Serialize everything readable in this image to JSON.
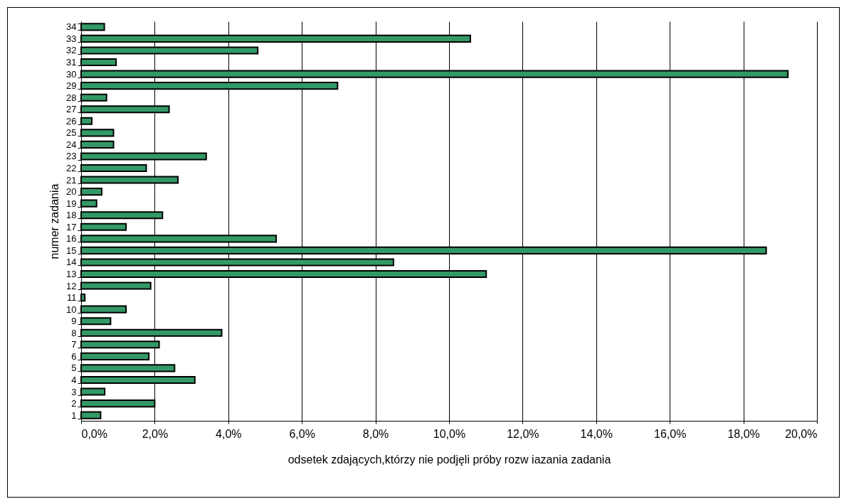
{
  "chart_data": {
    "type": "bar",
    "orientation": "horizontal",
    "xlabel": "odsetek zdających,którzy nie podjęli próby rozw iazania zadania",
    "ylabel": "numer zadania",
    "categories": [
      "34",
      "33",
      "32",
      "31",
      "30",
      "29",
      "28",
      "27",
      "26",
      "25",
      "24",
      "23",
      "22",
      "21",
      "20",
      "19",
      "18",
      "17",
      "16",
      "15",
      "14",
      "13",
      "12",
      "11",
      "10",
      "9",
      "8",
      "7",
      "6",
      "5",
      "4",
      "3",
      "2",
      "1"
    ],
    "values": [
      0.63,
      10.58,
      4.8,
      0.95,
      19.21,
      6.97,
      0.69,
      2.39,
      0.29,
      0.88,
      0.88,
      3.4,
      1.77,
      2.63,
      0.56,
      0.42,
      2.21,
      1.22,
      5.3,
      18.62,
      8.49,
      11.01,
      1.89,
      0.1,
      1.22,
      0.8,
      3.82,
      2.12,
      1.84,
      2.54,
      3.09,
      0.64,
      2.0,
      0.53
    ],
    "color": "#339966",
    "xlim": [
      0,
      20
    ],
    "xticks": [
      {
        "value": 0,
        "label": "0,0%"
      },
      {
        "value": 2,
        "label": "2,0%"
      },
      {
        "value": 4,
        "label": "4,0%"
      },
      {
        "value": 6,
        "label": "6,0%"
      },
      {
        "value": 8,
        "label": "8,0%"
      },
      {
        "value": 10,
        "label": "10,0%"
      },
      {
        "value": 12,
        "label": "12,0%"
      },
      {
        "value": 14,
        "label": "14,0%"
      },
      {
        "value": 16,
        "label": "16,0%"
      },
      {
        "value": 18,
        "label": "18,0%"
      },
      {
        "value": 20,
        "label": "20,0%"
      }
    ],
    "grid": "x"
  }
}
